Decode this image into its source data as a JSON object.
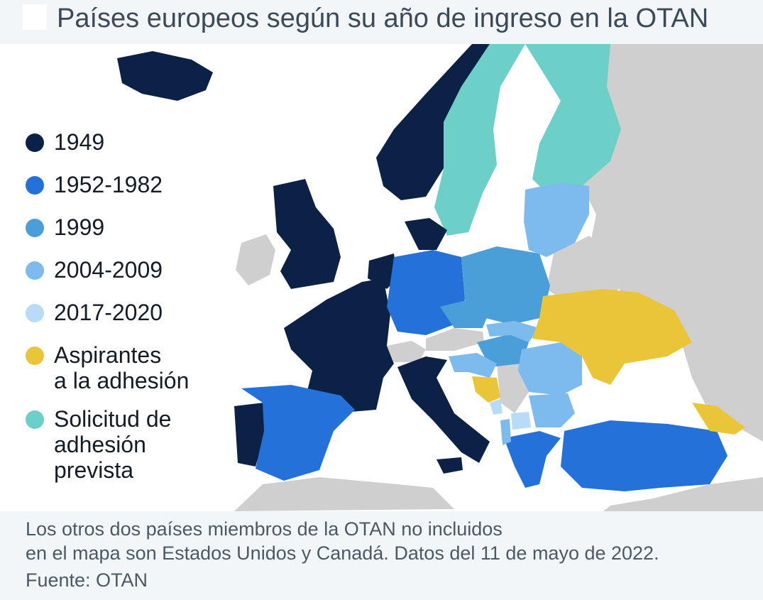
{
  "header": {
    "title": "Países europeos según su año de ingreso en la OTAN"
  },
  "colors": {
    "1949": "#0b2145",
    "1952-1982": "#2371d9",
    "1999": "#4b9fd8",
    "2004-2009": "#7dbbef",
    "2017-2020": "#b8dcf8",
    "aspirantes": "#eac537",
    "solicitud": "#6dd0c8",
    "non_member": "#cfcfcf",
    "sea": "#ffffff",
    "background": "#f3f6f9"
  },
  "legend": {
    "items": [
      {
        "label": "1949",
        "color": "#0b2145"
      },
      {
        "label": "1952-1982",
        "color": "#2371d9"
      },
      {
        "label": "1999",
        "color": "#4b9fd8"
      },
      {
        "label": "2004-2009",
        "color": "#7dbbef"
      },
      {
        "label": "2017-2020",
        "color": "#b8dcf8"
      },
      {
        "label": "Aspirantes\na la adhesión",
        "color": "#eac537"
      },
      {
        "label": "Solicitud de\nadhesión\nprevista",
        "color": "#6dd0c8"
      }
    ]
  },
  "footer": {
    "note_line1": "Los otros dos países miembros de la OTAN no incluidos",
    "note_line2": "en el mapa son Estados Unidos y Canadá. Datos del 11 de mayo de 2022.",
    "source": "Fuente: OTAN"
  }
}
